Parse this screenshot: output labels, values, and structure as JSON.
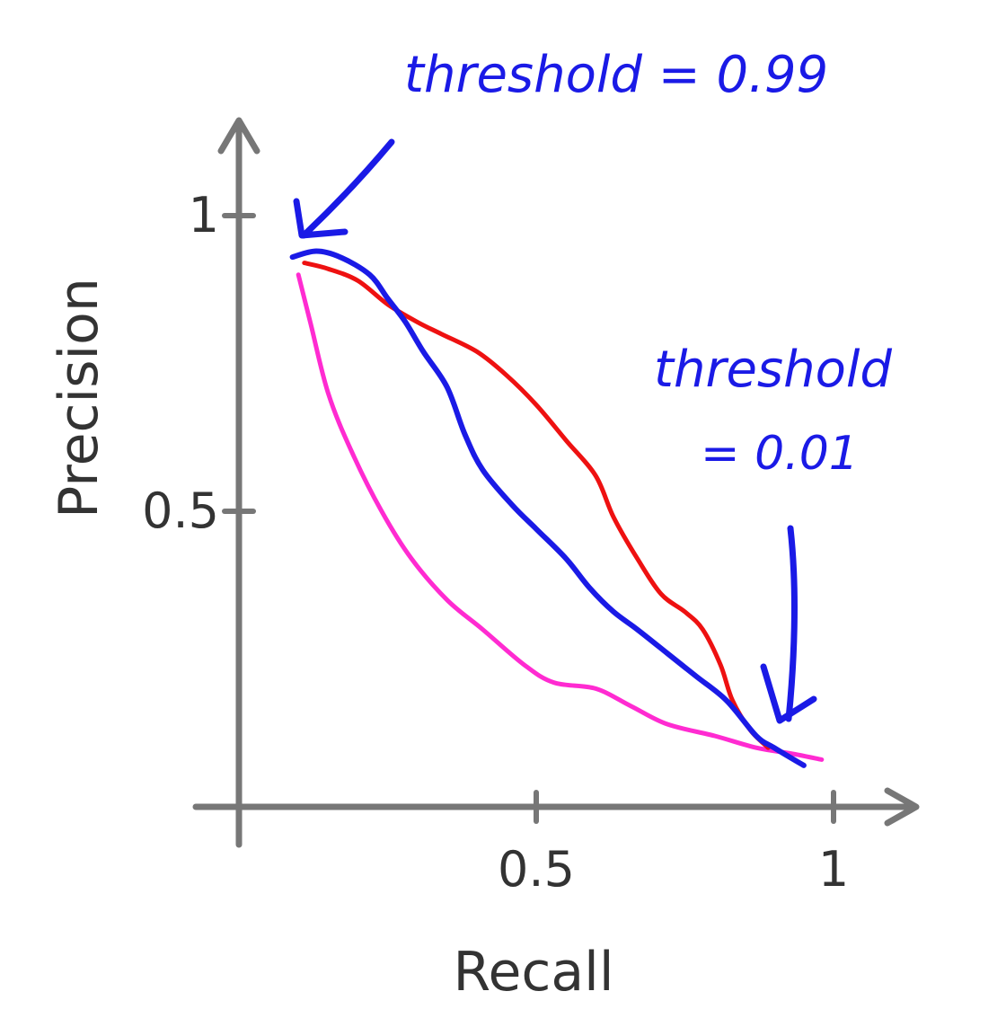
{
  "chart_data": {
    "type": "line",
    "xlabel": "Recall",
    "ylabel": "Precision",
    "xlim": [
      0,
      1
    ],
    "ylim": [
      0,
      1
    ],
    "x_ticks": [
      {
        "value": 0.5,
        "label": "0.5"
      },
      {
        "value": 1,
        "label": "1"
      }
    ],
    "y_ticks": [
      {
        "value": 0.5,
        "label": "0.5"
      },
      {
        "value": 1,
        "label": "1"
      }
    ],
    "grid": false,
    "series": [
      {
        "color": "#1a1ae6",
        "x": [
          0.09,
          0.13,
          0.17,
          0.22,
          0.25,
          0.28,
          0.31,
          0.35,
          0.38,
          0.41,
          0.46,
          0.5,
          0.55,
          0.59,
          0.63,
          0.67,
          0.72,
          0.77,
          0.82,
          0.87,
          0.9,
          0.95
        ],
        "y": [
          0.93,
          0.94,
          0.93,
          0.9,
          0.86,
          0.82,
          0.77,
          0.71,
          0.63,
          0.57,
          0.51,
          0.47,
          0.42,
          0.37,
          0.33,
          0.3,
          0.26,
          0.22,
          0.18,
          0.12,
          0.1,
          0.07
        ]
      },
      {
        "color": "#ee1111",
        "x": [
          0.11,
          0.15,
          0.2,
          0.25,
          0.3,
          0.34,
          0.4,
          0.45,
          0.5,
          0.55,
          0.6,
          0.63,
          0.67,
          0.71,
          0.75,
          0.78,
          0.81,
          0.83,
          0.86,
          0.89
        ],
        "y": [
          0.92,
          0.91,
          0.89,
          0.85,
          0.82,
          0.8,
          0.77,
          0.73,
          0.68,
          0.62,
          0.56,
          0.49,
          0.42,
          0.36,
          0.33,
          0.3,
          0.24,
          0.18,
          0.13,
          0.1
        ]
      },
      {
        "color": "#ff2bd1",
        "x": [
          0.1,
          0.12,
          0.15,
          0.19,
          0.24,
          0.29,
          0.35,
          0.41,
          0.48,
          0.53,
          0.6,
          0.66,
          0.72,
          0.8,
          0.87,
          0.93,
          0.98
        ],
        "y": [
          0.9,
          0.82,
          0.7,
          0.6,
          0.5,
          0.42,
          0.35,
          0.3,
          0.24,
          0.21,
          0.2,
          0.17,
          0.14,
          0.12,
          0.1,
          0.09,
          0.08
        ]
      }
    ],
    "annotations": [
      {
        "text": "threshold = 0.99",
        "color": "#1a1ae6"
      },
      {
        "text": "threshold",
        "color": "#1a1ae6"
      },
      {
        "text": "= 0.01",
        "color": "#1a1ae6"
      }
    ]
  }
}
